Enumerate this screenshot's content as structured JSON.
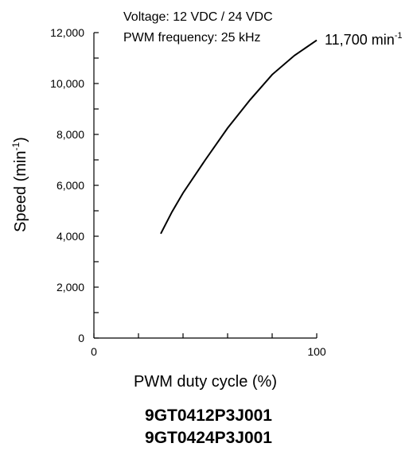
{
  "chart_data": {
    "type": "line",
    "annotations": {
      "voltage": "Voltage: 12 VDC / 24 VDC",
      "pwm_frequency": "PWM frequency: 25 kHz",
      "end_label": "11,700 min",
      "end_label_superscript": "-1"
    },
    "ylabel": "Speed (min",
    "ylabel_superscript": "-1",
    "ylabel_suffix": ")",
    "xlabel": "PWM duty cycle (%)",
    "x_ticks": [
      "0",
      "100"
    ],
    "y_ticks": [
      "0",
      "2,000",
      "4,000",
      "6,000",
      "8,000",
      "10,000",
      "12,000"
    ],
    "xlim": [
      0,
      100
    ],
    "ylim": [
      0,
      12000
    ],
    "grid": false,
    "series": [
      {
        "color": "#000000",
        "x": [
          30,
          35,
          40,
          50,
          60,
          70,
          80,
          90,
          100
        ],
        "y": [
          4100,
          4950,
          5700,
          7000,
          8250,
          9350,
          10350,
          11100,
          11700
        ]
      }
    ]
  },
  "models": [
    "9GT0412P3J001",
    "9GT0424P3J001"
  ]
}
